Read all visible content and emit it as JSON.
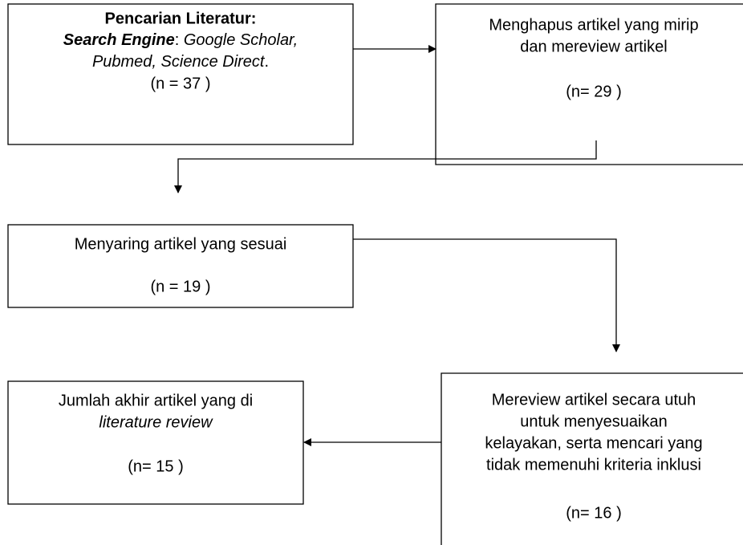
{
  "nodes": [
    {
      "title": "Pencarian Literatur:",
      "engine_label": "Search Engine",
      "engine_sep": ": ",
      "engines": "Google Scholar,",
      "engines_more": "Pubmed, Science Direct",
      "end": ".",
      "count": "(n = 37 )"
    },
    {
      "lines": [
        "Menghapus artikel yang mirip",
        "dan mereview artikel"
      ],
      "count": "(n= 29 )"
    },
    {
      "lines": [
        "Menyaring artikel yang sesuai"
      ],
      "count": "(n = 19 )"
    },
    {
      "lines": [
        "Mereview artikel secara utuh",
        "untuk menyesuaikan",
        "kelayakan, serta mencari yang",
        "tidak memenuhi kriteria inklusi"
      ],
      "count": "(n= 16 )"
    },
    {
      "lines": [
        "Jumlah akhir artikel yang di"
      ],
      "emphasis": "literature review",
      "count": "(n= 15 )"
    }
  ]
}
